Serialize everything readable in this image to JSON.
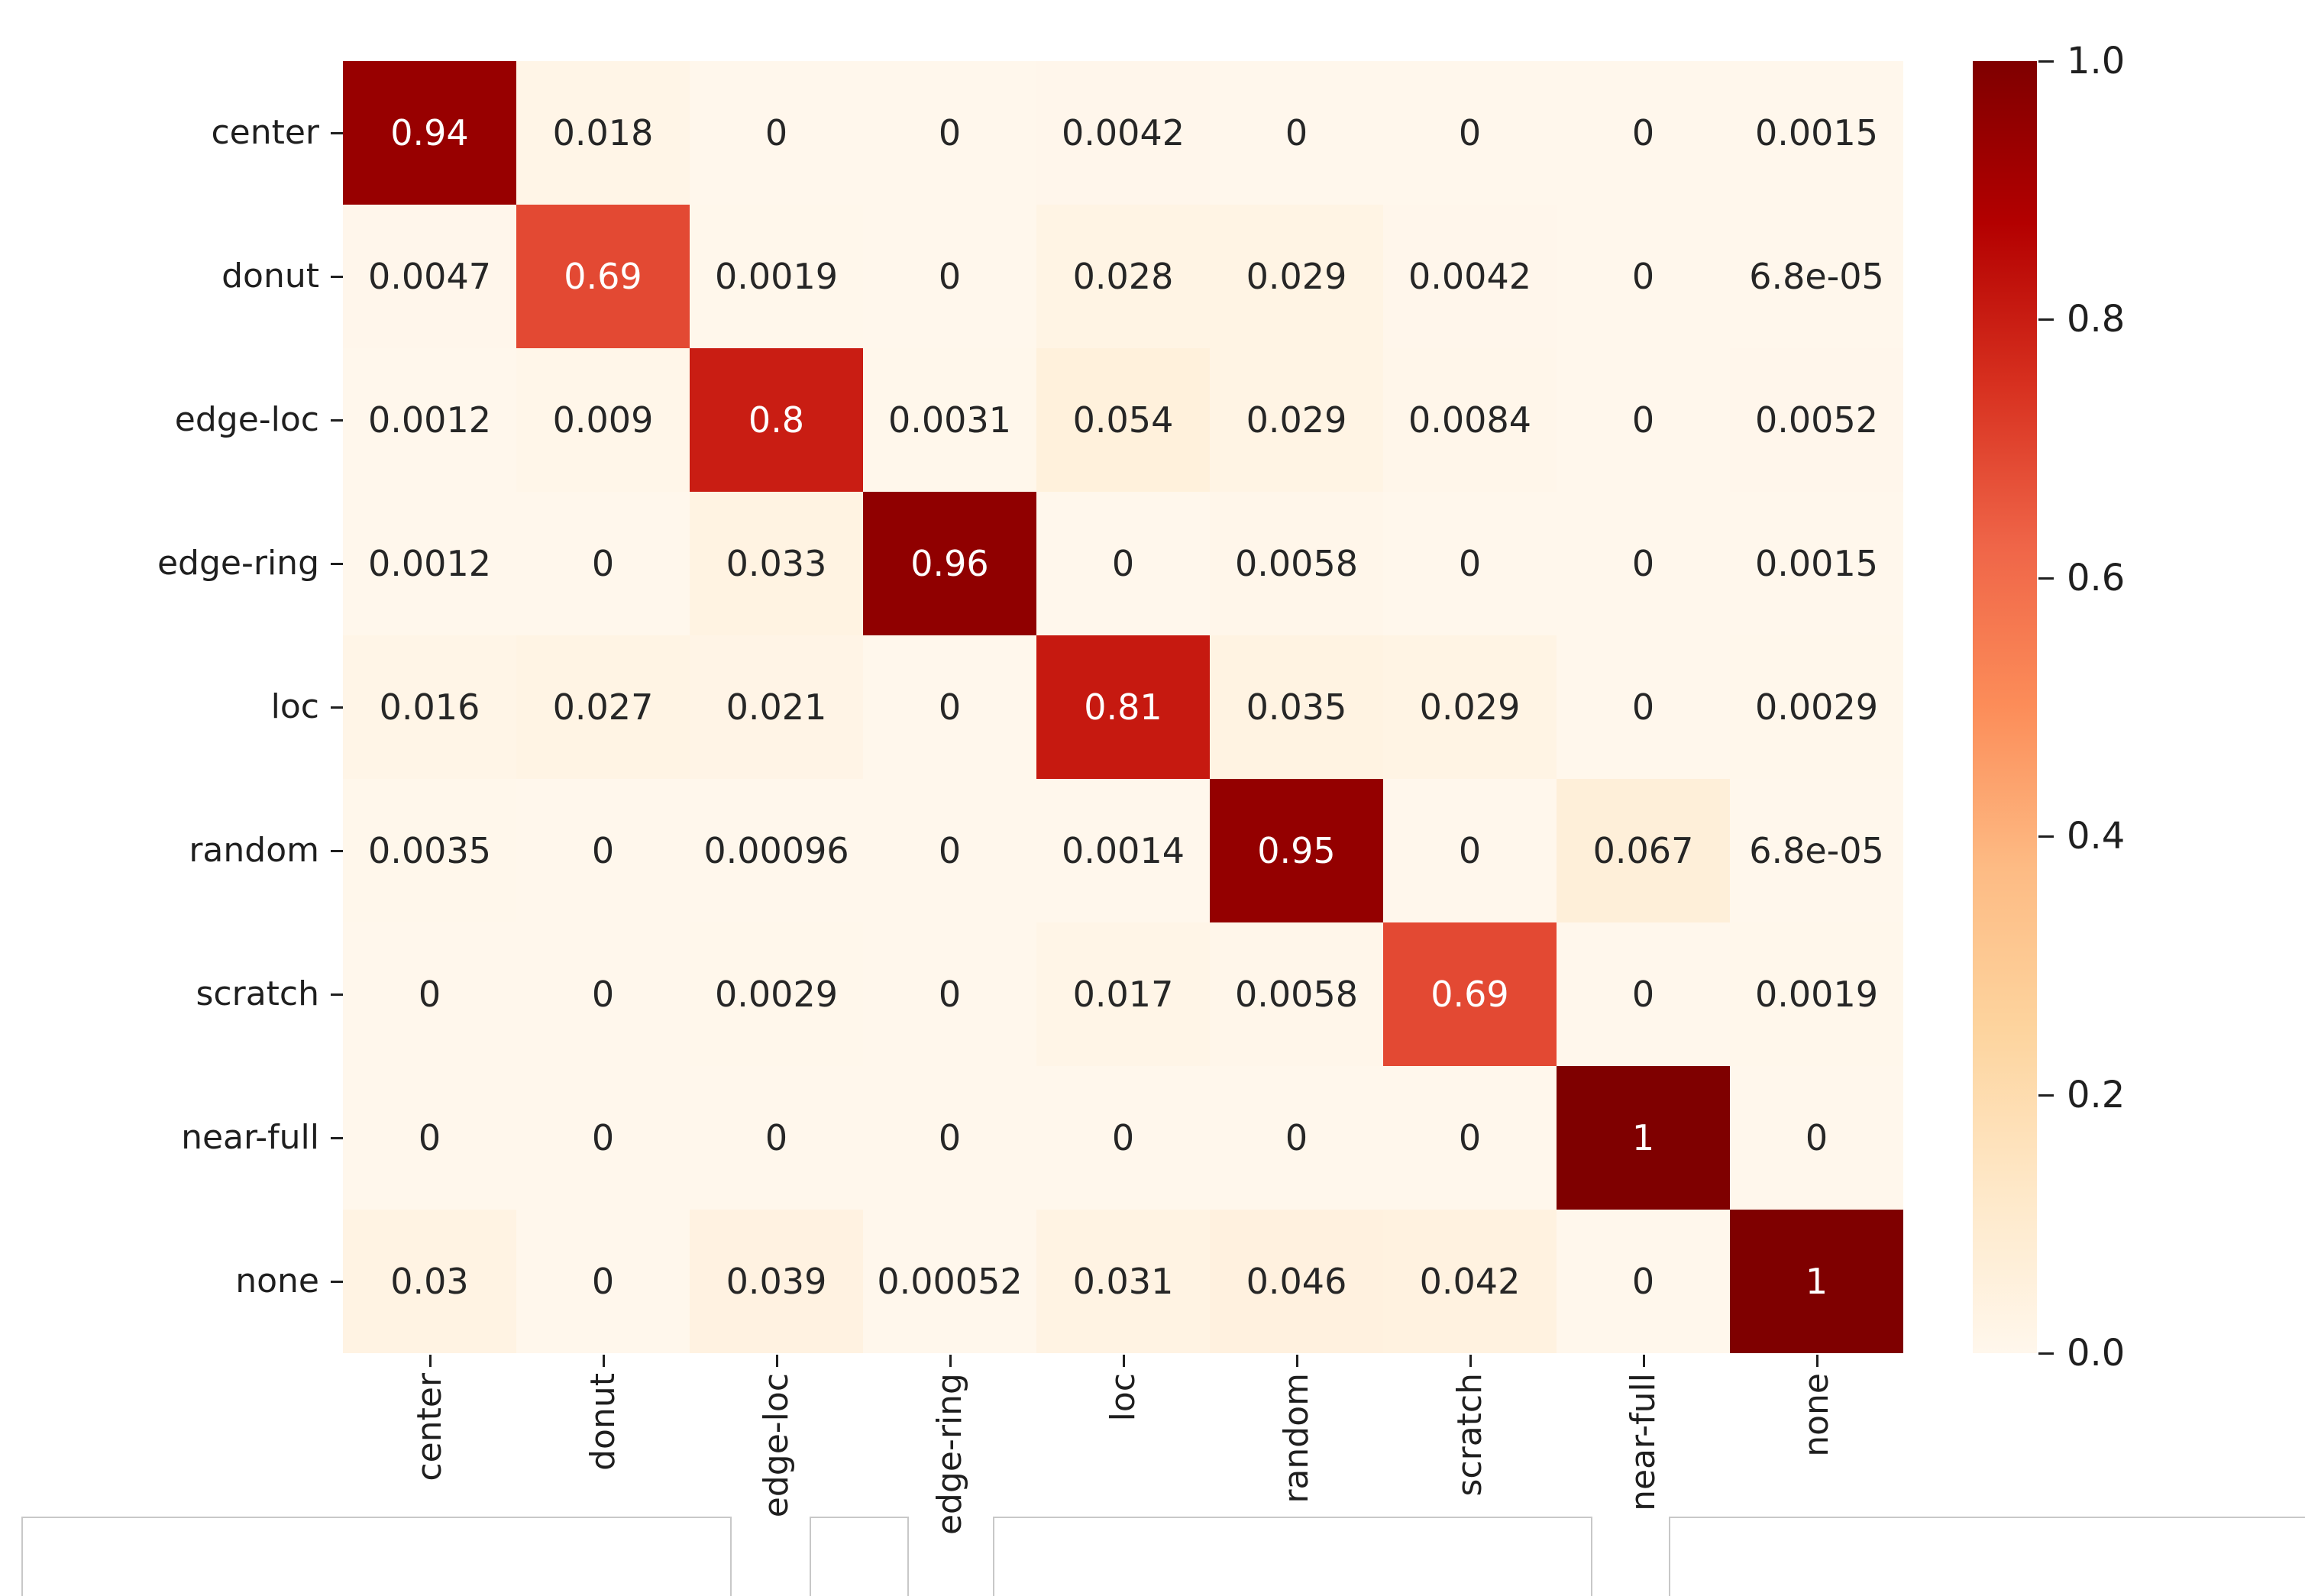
{
  "figure": {
    "background": "#ffffff",
    "text_color": "#1f1f1f",
    "cell_text_dark": "#262626",
    "cell_text_light": "#ffffff",
    "panel_border": "#c8c8c8"
  },
  "chart_data": {
    "type": "heatmap",
    "title": "",
    "xlabel": "",
    "ylabel": "",
    "x_categories": [
      "center",
      "donut",
      "edge-loc",
      "edge-ring",
      "loc",
      "random",
      "scratch",
      "near-full",
      "none"
    ],
    "y_categories": [
      "center",
      "donut",
      "edge-loc",
      "edge-ring",
      "loc",
      "random",
      "scratch",
      "near-full",
      "none"
    ],
    "cell_labels": [
      [
        "0.94",
        "0.018",
        "0",
        "0",
        "0.0042",
        "0",
        "0",
        "0",
        "0.0015"
      ],
      [
        "0.0047",
        "0.69",
        "0.0019",
        "0",
        "0.028",
        "0.029",
        "0.0042",
        "0",
        "6.8e-05"
      ],
      [
        "0.0012",
        "0.009",
        "0.8",
        "0.0031",
        "0.054",
        "0.029",
        "0.0084",
        "0",
        "0.0052"
      ],
      [
        "0.0012",
        "0",
        "0.033",
        "0.96",
        "0",
        "0.0058",
        "0",
        "0",
        "0.0015"
      ],
      [
        "0.016",
        "0.027",
        "0.021",
        "0",
        "0.81",
        "0.035",
        "0.029",
        "0",
        "0.0029"
      ],
      [
        "0.0035",
        "0",
        "0.00096",
        "0",
        "0.0014",
        "0.95",
        "0",
        "0.067",
        "6.8e-05"
      ],
      [
        "0",
        "0",
        "0.0029",
        "0",
        "0.017",
        "0.0058",
        "0.69",
        "0",
        "0.0019"
      ],
      [
        "0",
        "0",
        "0",
        "0",
        "0",
        "0",
        "0",
        "1",
        "0"
      ],
      [
        "0.03",
        "0",
        "0.039",
        "0.00052",
        "0.031",
        "0.046",
        "0.042",
        "0",
        "1"
      ]
    ],
    "value_range": [
      0,
      1
    ],
    "grid": false,
    "legend_position": "right-colorbar",
    "colorbar_ticks": [
      "1.0",
      "0.8",
      "0.6",
      "0.4",
      "0.2",
      "0.0"
    ],
    "colormap_stops": [
      "#fff7ec",
      "#fee8c8",
      "#fdd49e",
      "#fdbb84",
      "#fc8d59",
      "#ef6548",
      "#d7301f",
      "#b30000",
      "#7f0000"
    ]
  }
}
